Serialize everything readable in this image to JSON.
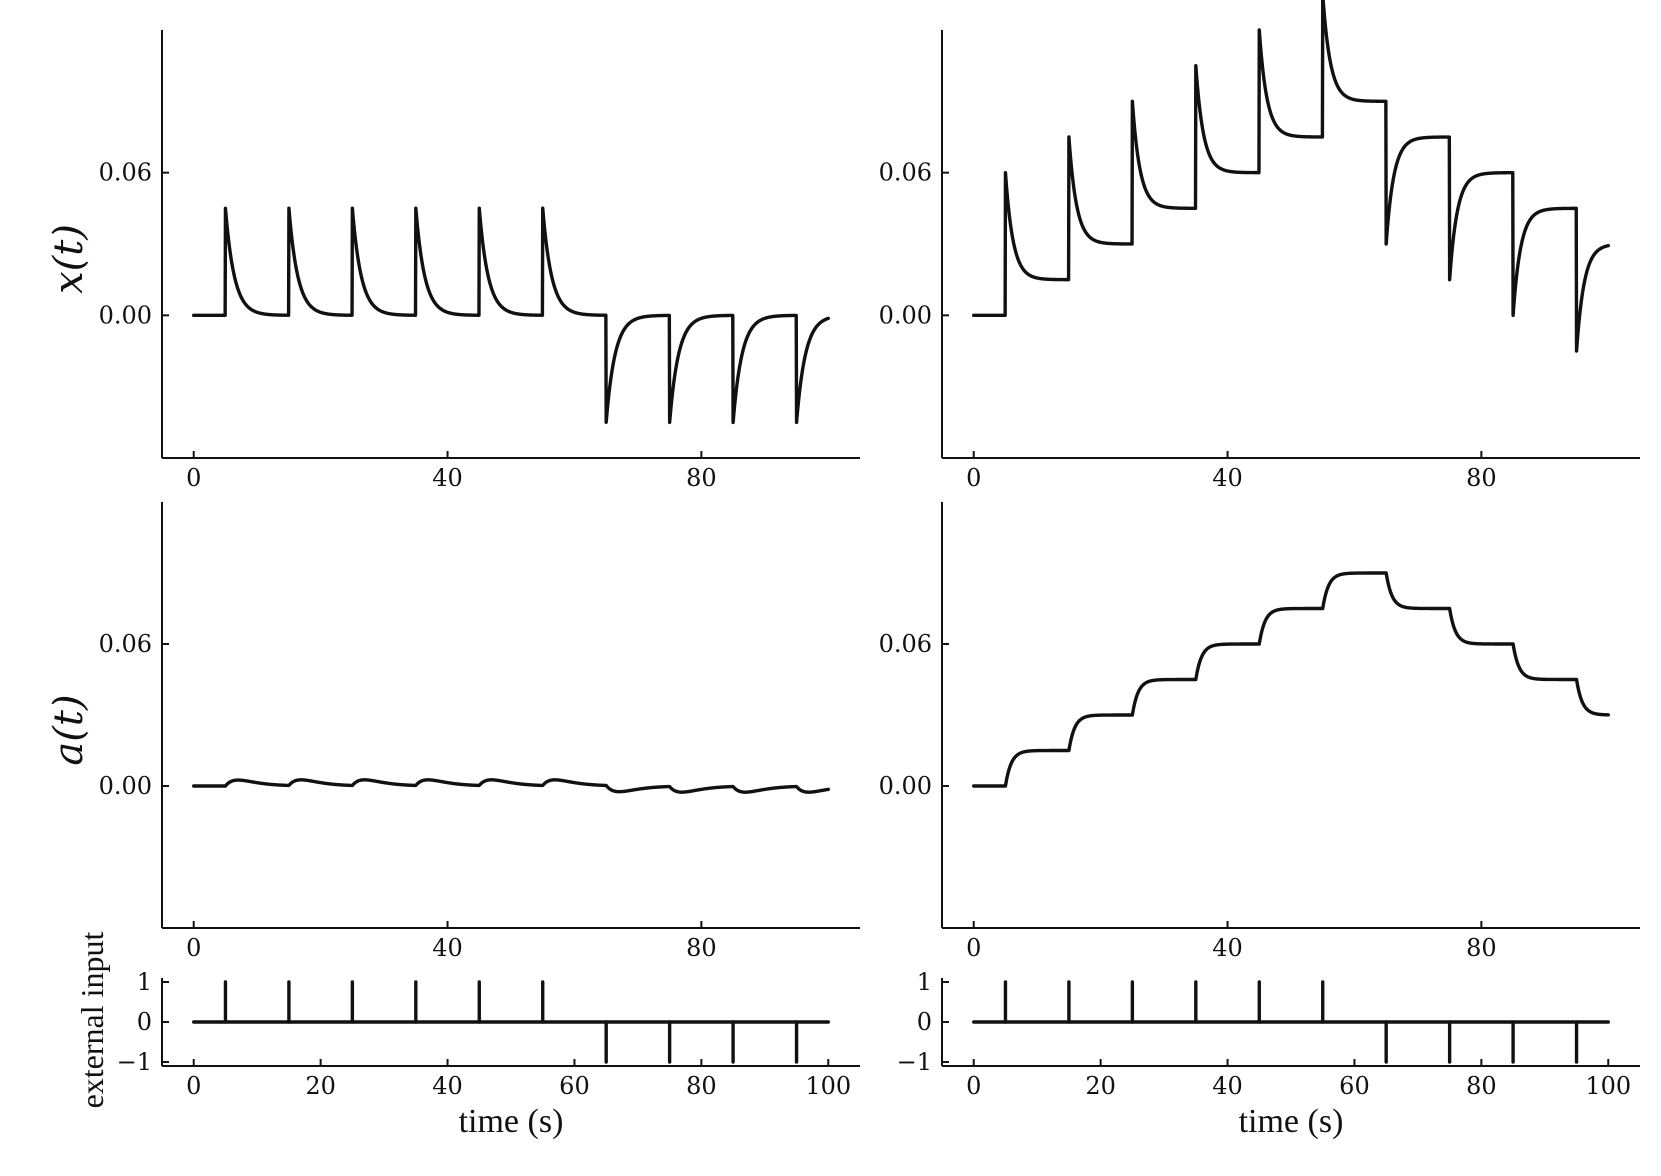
{
  "chart_data": [
    {
      "id": "x_a",
      "type": "line",
      "ylabel": "x(t)",
      "xlim": [
        -5,
        105
      ],
      "ylim": [
        -0.06,
        0.12
      ],
      "xticks": [
        0,
        40,
        80
      ],
      "yticks": [
        0.0,
        0.06
      ],
      "ytick_labels": [
        "0.00",
        "0.06"
      ],
      "input": [
        1,
        1,
        1,
        1,
        1,
        1,
        -1,
        -1,
        -1,
        -1
      ],
      "model": "x",
      "params": {
        "amp": 0.045,
        "tau": 1.4,
        "keep": 0.0
      }
    },
    {
      "id": "x_b",
      "type": "line",
      "ylabel": "",
      "xlim": [
        -5,
        105
      ],
      "ylim": [
        -0.06,
        0.12
      ],
      "xticks": [
        0,
        40,
        80
      ],
      "yticks": [
        0.0,
        0.06
      ],
      "ytick_labels": [
        "0.00",
        "0.06"
      ],
      "input": [
        1,
        1,
        1,
        1,
        1,
        1,
        -1,
        -1,
        -1,
        -1
      ],
      "model": "x",
      "params": {
        "amp": 0.045,
        "tau": 1.2,
        "keep": 0.015
      }
    },
    {
      "id": "a_a",
      "type": "line",
      "ylabel": "a(t)",
      "xlim": [
        -5,
        105
      ],
      "ylim": [
        -0.06,
        0.12
      ],
      "xticks": [
        0,
        40,
        80
      ],
      "yticks": [
        0.0,
        0.06
      ],
      "ytick_labels": [
        "0.00",
        "0.06"
      ],
      "input": [
        1,
        1,
        1,
        1,
        1,
        1,
        -1,
        -1,
        -1,
        -1
      ],
      "model": "a",
      "params": {
        "amp": 0.0025,
        "tau": 2.0,
        "keep": 0.0
      }
    },
    {
      "id": "a_b",
      "type": "line",
      "ylabel": "",
      "xlim": [
        -5,
        105
      ],
      "ylim": [
        -0.06,
        0.12
      ],
      "xticks": [
        0,
        40,
        80
      ],
      "yticks": [
        0.0,
        0.06
      ],
      "ytick_labels": [
        "0.00",
        "0.06"
      ],
      "input": [
        1,
        1,
        1,
        1,
        1,
        1,
        -1,
        -1,
        -1,
        -1
      ],
      "model": "a",
      "params": {
        "amp": 0.015,
        "tau": 0.9,
        "keep": 0.015
      }
    },
    {
      "id": "in_a",
      "type": "line",
      "ylabel": "external input",
      "xlabel": "time (s)",
      "xlim": [
        -5,
        105
      ],
      "ylim": [
        -1.1,
        1.1
      ],
      "xticks": [
        0,
        20,
        40,
        60,
        80,
        100
      ],
      "yticks": [
        1,
        0,
        -1
      ],
      "ytick_labels": [
        "1",
        "0",
        "−1"
      ],
      "pulse_times": [
        5,
        15,
        25,
        35,
        45,
        55,
        65,
        75,
        85,
        95
      ],
      "pulse_values": [
        1,
        1,
        1,
        1,
        1,
        1,
        -1,
        -1,
        -1,
        -1
      ]
    },
    {
      "id": "in_b",
      "type": "line",
      "ylabel": "",
      "xlabel": "time (s)",
      "xlim": [
        -5,
        105
      ],
      "ylim": [
        -1.1,
        1.1
      ],
      "xticks": [
        0,
        20,
        40,
        60,
        80,
        100
      ],
      "yticks": [
        1,
        0,
        -1
      ],
      "ytick_labels": [
        "1",
        "0",
        "−1"
      ],
      "pulse_times": [
        5,
        15,
        25,
        35,
        45,
        55,
        65,
        75,
        85,
        95
      ],
      "pulse_values": [
        1,
        1,
        1,
        1,
        1,
        1,
        -1,
        -1,
        -1,
        -1
      ]
    }
  ]
}
